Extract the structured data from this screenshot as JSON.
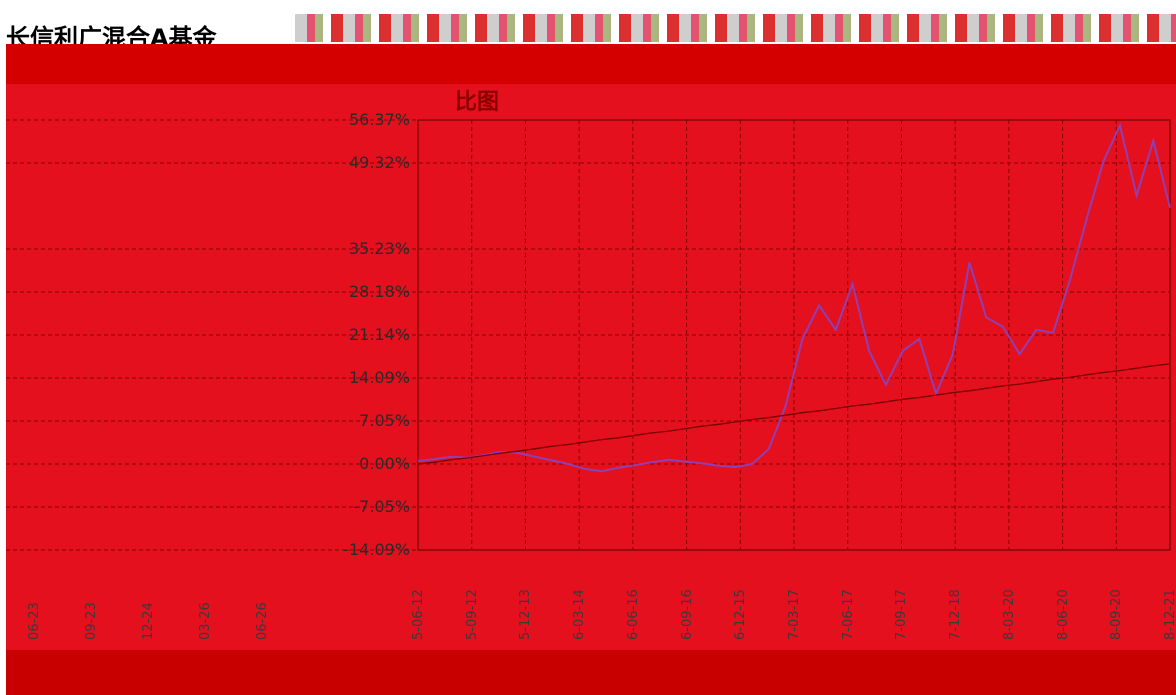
{
  "page": {
    "title": "长信利广混合A基金",
    "subtitle": "比图"
  },
  "colors": {
    "background": "#e4101e",
    "fund_line": "#8e3fb4",
    "benchmark_line": "#7a0000",
    "grid": "#8a0000"
  },
  "chart_data": {
    "type": "line",
    "title": "",
    "xlabel": "",
    "ylabel": "",
    "y_tick_labels": [
      "56.37%",
      "49.32%",
      "35.23%",
      "28.18%",
      "21.14%",
      "14.09%",
      "7.05%",
      "0.00%",
      "-7.05%",
      "-14.09%"
    ],
    "x_tick_labels": [
      "5-06-12",
      "5-09-12",
      "5-12-13",
      "6-03-14",
      "6-06-16",
      "6-09-16",
      "6-12-15",
      "7-03-17",
      "7-06-17",
      "7-09-17",
      "7-12-18",
      "8-03-20",
      "8-06-20",
      "8-09-20",
      "8-12-21"
    ],
    "left_x_tick_labels": [
      "06-23",
      "09-23",
      "12-24",
      "03-26",
      "06-26"
    ],
    "ylim": [
      -14.09,
      56.37
    ],
    "grid": true,
    "series": [
      {
        "values": [
          0.5,
          0.8,
          1.2,
          1.0,
          1.5,
          2.0,
          1.8,
          1.2,
          0.6,
          0.0,
          -0.8,
          -1.2,
          -0.6,
          -0.2,
          0.3,
          0.7,
          0.4,
          0.1,
          -0.3,
          -0.5,
          0.0,
          2.5,
          9.5,
          20.5,
          26.0,
          22.0,
          29.5,
          18.5,
          13.0,
          18.5,
          20.5,
          11.5,
          18.0,
          33.0,
          24.0,
          22.5,
          18.0,
          22.0,
          21.5,
          30.0,
          40.0,
          49.5,
          55.5,
          44.0,
          53.0,
          42.0
        ]
      },
      {
        "values": [
          0.0,
          0.3,
          0.7,
          1.0,
          1.4,
          1.8,
          2.1,
          2.5,
          2.9,
          3.2,
          3.6,
          4.0,
          4.3,
          4.7,
          5.1,
          5.4,
          5.8,
          6.2,
          6.5,
          6.9,
          7.3,
          7.6,
          8.0,
          8.4,
          8.7,
          9.1,
          9.5,
          9.8,
          10.2,
          10.6,
          10.9,
          11.3,
          11.7,
          12.0,
          12.4,
          12.8,
          13.1,
          13.5,
          13.9,
          14.2,
          14.6,
          15.0,
          15.3,
          15.7,
          16.1,
          16.4
        ]
      }
    ]
  }
}
